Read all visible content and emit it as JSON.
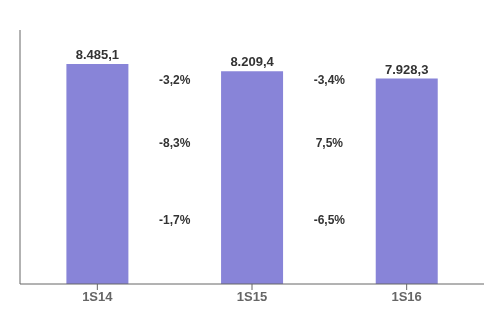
{
  "chart_data": {
    "type": "bar",
    "categories": [
      "1S14",
      "1S15",
      "1S16"
    ],
    "values": [
      8485.1,
      8209.4,
      7928.3
    ],
    "value_labels": [
      "8.485,1",
      "8.209,4",
      "7.928,3"
    ],
    "color": "#8884d8",
    "ylim": [
      0,
      9800
    ],
    "data_labels": true,
    "tick_labels": "x",
    "annotations": [
      [
        "-3,2%",
        "-8,3%",
        "-1,7%"
      ],
      [
        "-3,4%",
        "7,5%",
        "-6,5%"
      ]
    ]
  }
}
